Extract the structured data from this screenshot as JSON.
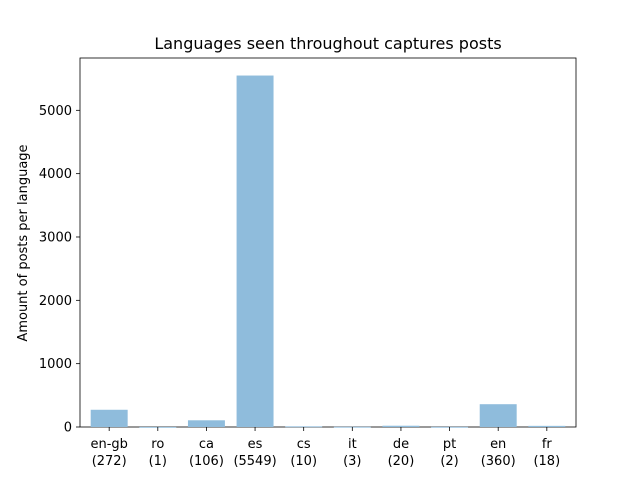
{
  "chart_data": {
    "type": "bar",
    "title": "Languages seen throughout captures posts",
    "xlabel": "",
    "ylabel": "Amount of posts per language",
    "categories": [
      "en-gb",
      "ro",
      "ca",
      "es",
      "cs",
      "it",
      "de",
      "pt",
      "en",
      "fr"
    ],
    "category_counts": [
      "(272)",
      "(1)",
      "(106)",
      "(5549)",
      "(10)",
      "(3)",
      "(20)",
      "(2)",
      "(360)",
      "(18)"
    ],
    "values": [
      272,
      1,
      106,
      5549,
      10,
      3,
      20,
      2,
      360,
      18
    ],
    "ylim": [
      0,
      5826
    ],
    "yticks": [
      0,
      1000,
      2000,
      3000,
      4000,
      5000
    ],
    "grid": false,
    "bar_color": "#8fbcdc"
  }
}
